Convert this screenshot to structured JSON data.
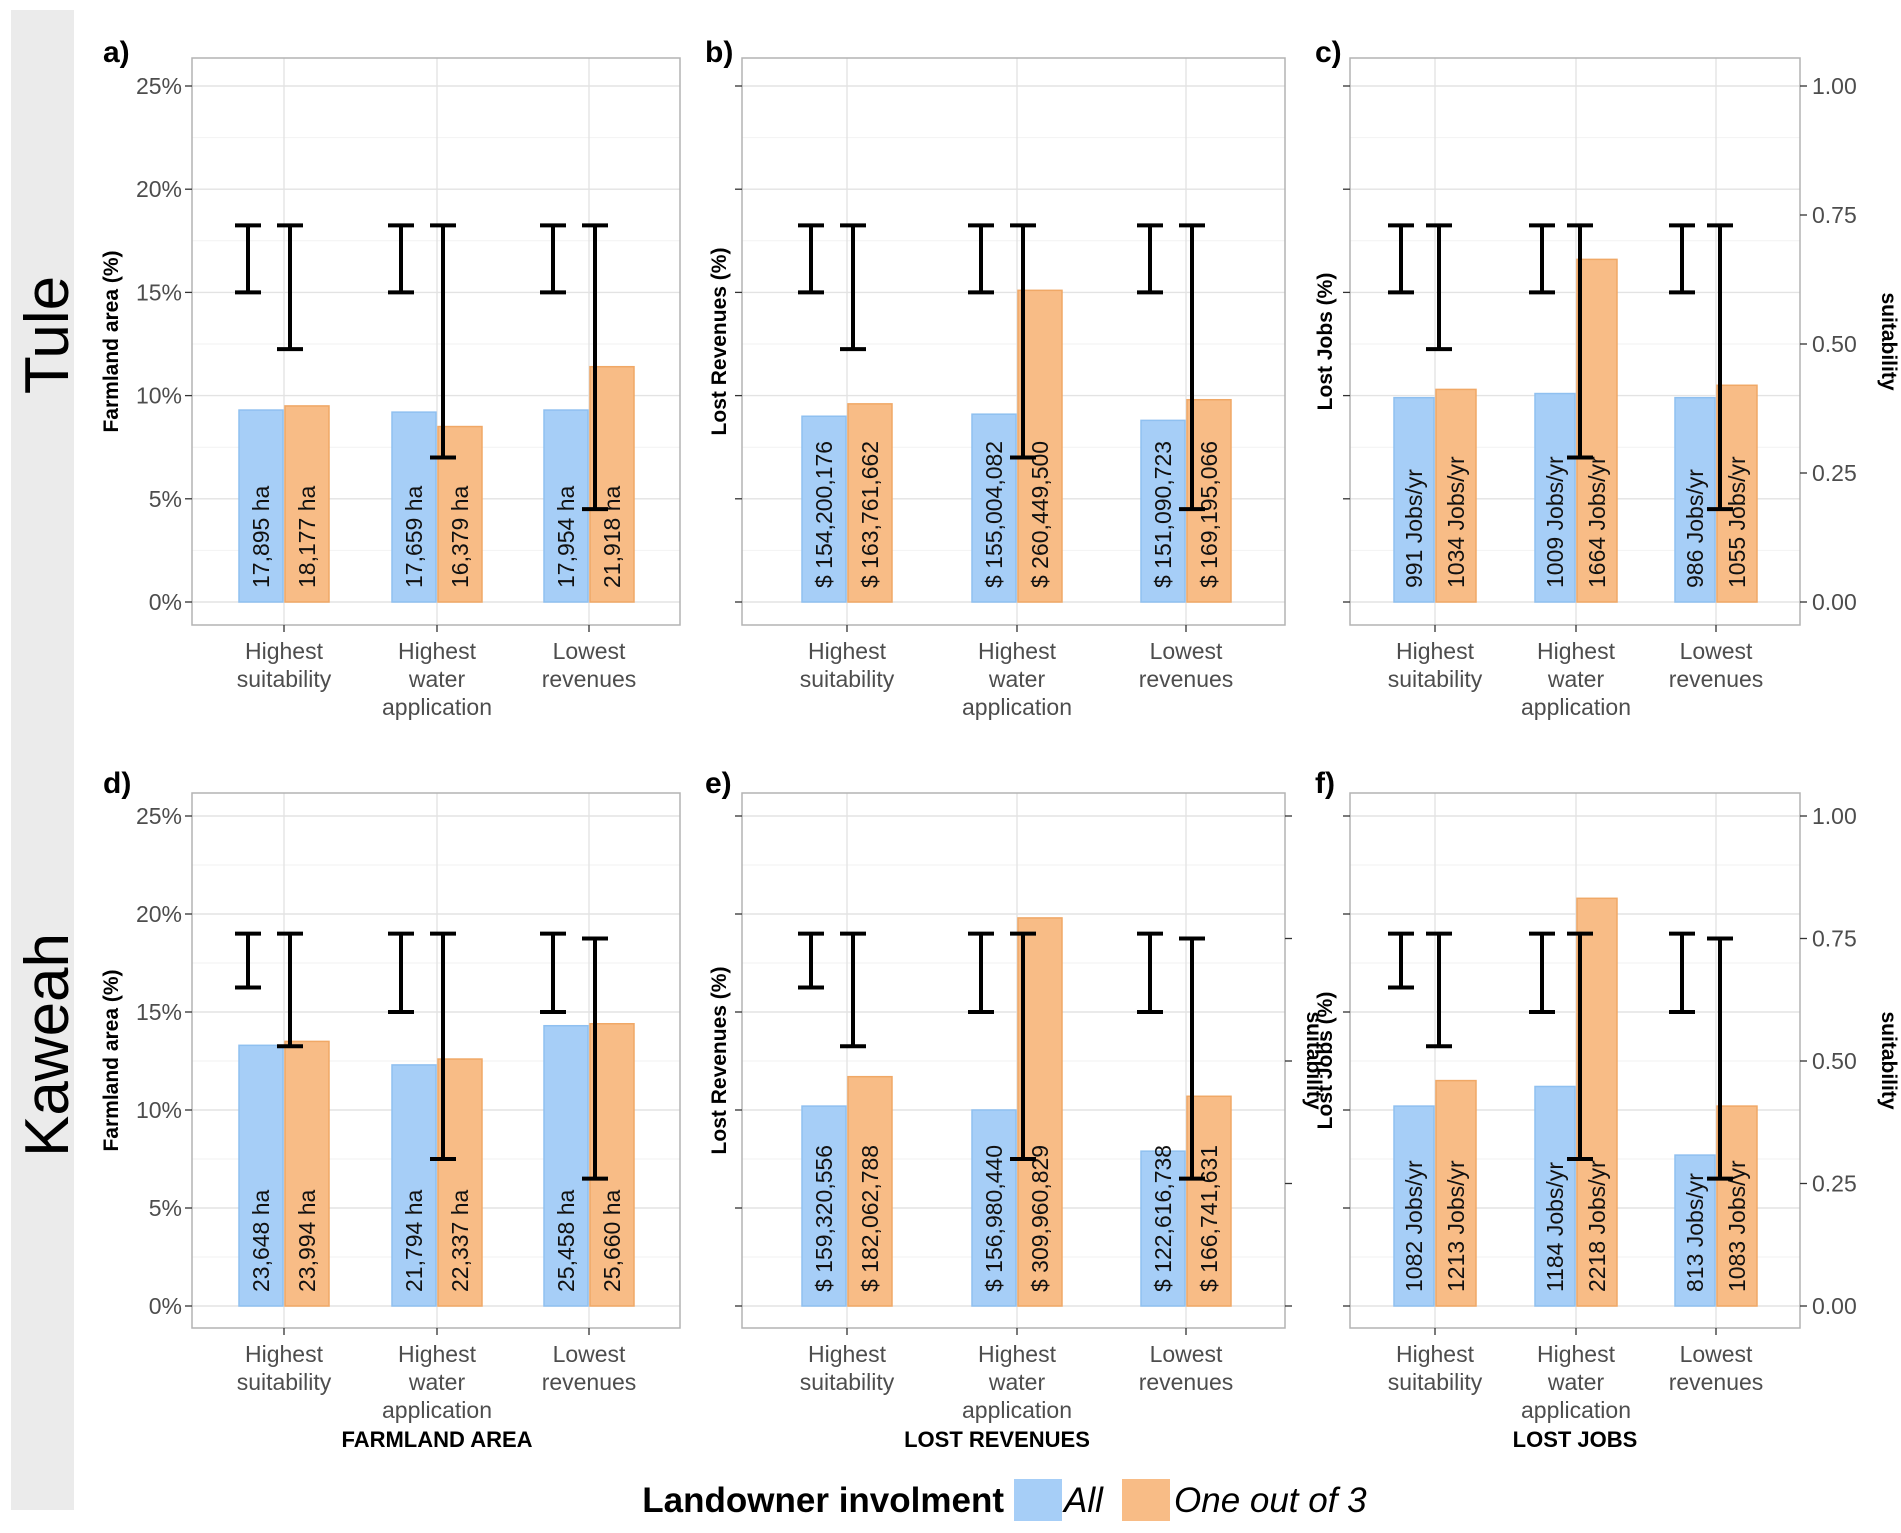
{
  "colors": {
    "all": "#a6cef7",
    "all_edge": "#8fc0f0",
    "one": "#f8bc86",
    "one_edge": "#f0a866"
  },
  "row_labels": [
    "Tule",
    "Kaweah"
  ],
  "column_titles": [
    "FARMLAND AREA",
    "LOST REVENUES",
    "LOST JOBS"
  ],
  "legend": {
    "title": "Landowner involment",
    "items": [
      "All",
      "One out of 3"
    ]
  },
  "chart_data": [
    {
      "id": "a",
      "tag": "a)",
      "row": 0,
      "col": 0,
      "type": "bar",
      "ylabel": "Farmland area (%)",
      "y_ticks": [
        "0%",
        "5%",
        "10%",
        "15%",
        "20%",
        "25%"
      ],
      "ylim": [
        0,
        25
      ],
      "categories": [
        [
          "Highest",
          "suitability"
        ],
        [
          "Highest",
          "water",
          "application"
        ],
        [
          "Lowest",
          "revenues"
        ]
      ],
      "series": [
        {
          "name": "All",
          "values": [
            9.3,
            9.2,
            9.3
          ],
          "labels": [
            "17,895 ha",
            "17,659 ha",
            "17,954 ha"
          ]
        },
        {
          "name": "One out of 3",
          "values": [
            9.5,
            8.5,
            11.4
          ],
          "labels": [
            "18,177 ha",
            "16,379 ha",
            "21,918 ha"
          ]
        }
      ],
      "error_bars": [
        {
          "all": [
            0.6,
            0.73
          ],
          "one": [
            0.49,
            0.73
          ]
        },
        {
          "all": [
            0.6,
            0.73
          ],
          "one": [
            0.28,
            0.73
          ]
        },
        {
          "all": [
            0.6,
            0.73
          ],
          "one": [
            0.18,
            0.73
          ]
        }
      ],
      "secondary_axis": null
    },
    {
      "id": "b",
      "tag": "b)",
      "row": 0,
      "col": 1,
      "type": "bar",
      "ylabel": "Lost Revenues (%)",
      "y_ticks": [
        "",
        "",
        "",
        "",
        "",
        ""
      ],
      "ylim": [
        0,
        25
      ],
      "categories": [
        [
          "Highest",
          "suitability"
        ],
        [
          "Highest",
          "water",
          "application"
        ],
        [
          "Lowest",
          "revenues"
        ]
      ],
      "series": [
        {
          "name": "All",
          "values": [
            9.0,
            9.1,
            8.8
          ],
          "labels": [
            "$ 154,200,176",
            "$ 155,004,082",
            "$ 151,090,723"
          ]
        },
        {
          "name": "One out of 3",
          "values": [
            9.6,
            15.1,
            9.8
          ],
          "labels": [
            "$ 163,761,662",
            "$ 260,449,500",
            "$ 169,195,066"
          ]
        }
      ],
      "error_bars": [
        {
          "all": [
            0.6,
            0.73
          ],
          "one": [
            0.49,
            0.73
          ]
        },
        {
          "all": [
            0.6,
            0.73
          ],
          "one": [
            0.28,
            0.73
          ]
        },
        {
          "all": [
            0.6,
            0.73
          ],
          "one": [
            0.18,
            0.73
          ]
        }
      ],
      "secondary_axis": null
    },
    {
      "id": "c",
      "tag": "c)",
      "row": 0,
      "col": 2,
      "type": "bar",
      "ylabel": "Lost Jobs (%)",
      "y_ticks": [
        "",
        "",
        "",
        "",
        "",
        ""
      ],
      "ylim": [
        0,
        25
      ],
      "categories": [
        [
          "Highest",
          "suitability"
        ],
        [
          "Highest",
          "water",
          "application"
        ],
        [
          "Lowest",
          "revenues"
        ]
      ],
      "series": [
        {
          "name": "All",
          "values": [
            9.9,
            10.1,
            9.9
          ],
          "labels": [
            "991 Jobs/yr",
            "1009 Jobs/yr",
            "986 Jobs/yr"
          ]
        },
        {
          "name": "One out of 3",
          "values": [
            10.3,
            16.6,
            10.5
          ],
          "labels": [
            "1034 Jobs/yr",
            "1664 Jobs/yr",
            "1055 Jobs/yr"
          ]
        }
      ],
      "error_bars": [
        {
          "all": [
            0.6,
            0.73
          ],
          "one": [
            0.49,
            0.73
          ]
        },
        {
          "all": [
            0.6,
            0.73
          ],
          "one": [
            0.28,
            0.73
          ]
        },
        {
          "all": [
            0.6,
            0.73
          ],
          "one": [
            0.18,
            0.73
          ]
        }
      ],
      "secondary_axis": {
        "label": "suitability",
        "ticks": [
          "0.00",
          "0.25",
          "0.50",
          "0.75",
          "1.00"
        ],
        "lim": [
          0,
          1
        ]
      }
    },
    {
      "id": "d",
      "tag": "d)",
      "row": 1,
      "col": 0,
      "type": "bar",
      "ylabel": "Farmland area (%)",
      "y_ticks": [
        "0%",
        "5%",
        "10%",
        "15%",
        "20%",
        "25%"
      ],
      "ylim": [
        0,
        25
      ],
      "categories": [
        [
          "Highest",
          "suitability"
        ],
        [
          "Highest",
          "water",
          "application"
        ],
        [
          "Lowest",
          "revenues"
        ]
      ],
      "series": [
        {
          "name": "All",
          "values": [
            13.3,
            12.3,
            14.3
          ],
          "labels": [
            "23,648 ha",
            "21,794 ha",
            "25,458 ha"
          ]
        },
        {
          "name": "One out of 3",
          "values": [
            13.5,
            12.6,
            14.4
          ],
          "labels": [
            "23,994 ha",
            "22,337 ha",
            "25,660 ha"
          ]
        }
      ],
      "error_bars": [
        {
          "all": [
            0.65,
            0.76
          ],
          "one": [
            0.53,
            0.76
          ]
        },
        {
          "all": [
            0.6,
            0.76
          ],
          "one": [
            0.3,
            0.76
          ]
        },
        {
          "all": [
            0.6,
            0.76
          ],
          "one": [
            0.26,
            0.75
          ]
        }
      ],
      "secondary_axis": null
    },
    {
      "id": "e",
      "tag": "e)",
      "row": 1,
      "col": 1,
      "type": "bar",
      "ylabel": "Lost Revenues (%)",
      "y_ticks": [
        "",
        "",
        "",
        "",
        "",
        ""
      ],
      "ylim": [
        0,
        25
      ],
      "categories": [
        [
          "Highest",
          "suitability"
        ],
        [
          "Highest",
          "water",
          "application"
        ],
        [
          "Lowest",
          "revenues"
        ]
      ],
      "series": [
        {
          "name": "All",
          "values": [
            10.2,
            10.0,
            7.9
          ],
          "labels": [
            "$ 159,320,556",
            "$ 156,980,440",
            "$ 122,616,738"
          ]
        },
        {
          "name": "One out of 3",
          "values": [
            11.7,
            19.8,
            10.7
          ],
          "labels": [
            "$ 182,062,788",
            "$ 309,960,829",
            "$ 166,741,631"
          ]
        }
      ],
      "error_bars": [
        {
          "all": [
            0.65,
            0.76
          ],
          "one": [
            0.53,
            0.76
          ]
        },
        {
          "all": [
            0.6,
            0.76
          ],
          "one": [
            0.3,
            0.76
          ]
        },
        {
          "all": [
            0.6,
            0.76
          ],
          "one": [
            0.26,
            0.75
          ]
        }
      ],
      "secondary_axis": {
        "label": "suitability",
        "ticks": [
          "",
          "",
          "",
          "",
          ""
        ],
        "lim": [
          0,
          1
        ]
      }
    },
    {
      "id": "f",
      "tag": "f)",
      "row": 1,
      "col": 2,
      "type": "bar",
      "ylabel": "Lost Jobs (%)",
      "y_ticks": [
        "",
        "",
        "",
        "",
        "",
        ""
      ],
      "ylim": [
        0,
        25
      ],
      "categories": [
        [
          "Highest",
          "suitability"
        ],
        [
          "Highest",
          "water",
          "application"
        ],
        [
          "Lowest",
          "revenues"
        ]
      ],
      "series": [
        {
          "name": "All",
          "values": [
            10.2,
            11.2,
            7.7
          ],
          "labels": [
            "1082 Jobs/yr",
            "1184 Jobs/yr",
            "813 Jobs/yr"
          ]
        },
        {
          "name": "One out of 3",
          "values": [
            11.5,
            20.8,
            10.2
          ],
          "labels": [
            "1213 Jobs/yr",
            "2218 Jobs/yr",
            "1083 Jobs/yr"
          ]
        }
      ],
      "error_bars": [
        {
          "all": [
            0.65,
            0.76
          ],
          "one": [
            0.53,
            0.76
          ]
        },
        {
          "all": [
            0.6,
            0.76
          ],
          "one": [
            0.3,
            0.76
          ]
        },
        {
          "all": [
            0.6,
            0.76
          ],
          "one": [
            0.26,
            0.75
          ]
        }
      ],
      "secondary_axis": {
        "label": "suitability",
        "ticks": [
          "0.00",
          "0.25",
          "0.50",
          "0.75",
          "1.00"
        ],
        "lim": [
          0,
          1
        ]
      }
    }
  ]
}
